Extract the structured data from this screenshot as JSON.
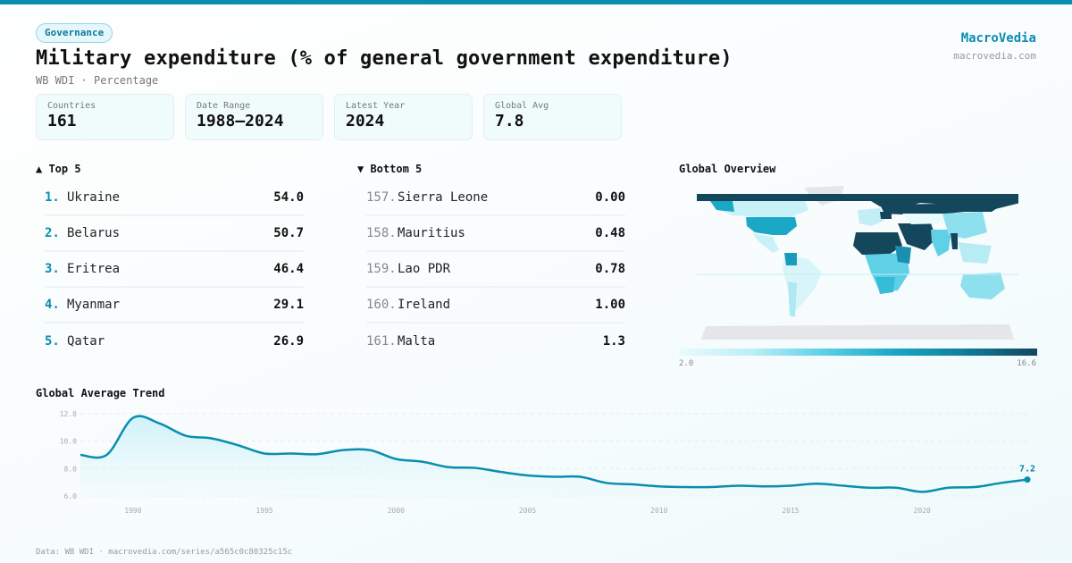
{
  "header": {
    "category_tag": "Governance",
    "title": "Military expenditure (% of general government expenditure)",
    "subtitle": "WB WDI · Percentage",
    "brand": "MacroVedia",
    "brand_url": "macrovedia.com"
  },
  "stats": [
    {
      "label": "Countries",
      "value": "161"
    },
    {
      "label": "Date Range",
      "value": "1988–2024"
    },
    {
      "label": "Latest Year",
      "value": "2024"
    },
    {
      "label": "Global Avg",
      "value": "7.8"
    }
  ],
  "top5": {
    "heading": "▲ Top 5",
    "items": [
      {
        "rank": "1.",
        "country": "Ukraine",
        "value": "54.0"
      },
      {
        "rank": "2.",
        "country": "Belarus",
        "value": "50.7"
      },
      {
        "rank": "3.",
        "country": "Eritrea",
        "value": "46.4"
      },
      {
        "rank": "4.",
        "country": "Myanmar",
        "value": "29.1"
      },
      {
        "rank": "5.",
        "country": "Qatar",
        "value": "26.9"
      }
    ]
  },
  "bottom5": {
    "heading": "▼ Bottom 5",
    "items": [
      {
        "rank": "157.",
        "country": "Sierra Leone",
        "value": "0.00"
      },
      {
        "rank": "158.",
        "country": "Mauritius",
        "value": "0.48"
      },
      {
        "rank": "159.",
        "country": "Lao PDR",
        "value": "0.78"
      },
      {
        "rank": "160.",
        "country": "Ireland",
        "value": "1.00"
      },
      {
        "rank": "161.",
        "country": "Malta",
        "value": "1.3"
      }
    ]
  },
  "map": {
    "title": "Global Overview",
    "legend_min": "2.0",
    "legend_max": "16.6",
    "colors": {
      "low": "#e9fbfd",
      "mid": "#1ba7c6",
      "high": "#14465c",
      "no_data": "#e4e6ea"
    }
  },
  "footer": "Data: WB WDI · macrovedia.com/series/a565c0c80325c15c",
  "chart_data": {
    "type": "area",
    "title": "Global Average Trend",
    "xlabel": "",
    "ylabel": "",
    "x": [
      1988,
      1989,
      1990,
      1991,
      1992,
      1993,
      1994,
      1995,
      1996,
      1997,
      1998,
      1999,
      2000,
      2001,
      2002,
      2003,
      2004,
      2005,
      2006,
      2007,
      2008,
      2009,
      2010,
      2011,
      2012,
      2013,
      2014,
      2015,
      2016,
      2017,
      2018,
      2019,
      2020,
      2021,
      2022,
      2023,
      2024
    ],
    "series": [
      {
        "name": "Global average",
        "values": [
          9.0,
          9.0,
          11.7,
          11.3,
          10.4,
          10.2,
          9.7,
          9.1,
          9.1,
          9.05,
          9.35,
          9.35,
          8.7,
          8.5,
          8.1,
          8.05,
          7.75,
          7.5,
          7.4,
          7.4,
          6.95,
          6.85,
          6.7,
          6.65,
          6.65,
          6.75,
          6.7,
          6.75,
          6.9,
          6.75,
          6.6,
          6.6,
          6.3,
          6.6,
          6.65,
          6.95,
          7.2
        ]
      }
    ],
    "yticks": [
      "6.0",
      "8.0",
      "10.0",
      "12.0"
    ],
    "xticks": [
      "1990",
      "1995",
      "2000",
      "2005",
      "2010",
      "2015",
      "2020"
    ],
    "ylim": [
      6.0,
      12.0
    ],
    "xlim": [
      1988,
      2024
    ],
    "last_label": "7.2",
    "grid": true,
    "line_color": "#0a8db0"
  }
}
